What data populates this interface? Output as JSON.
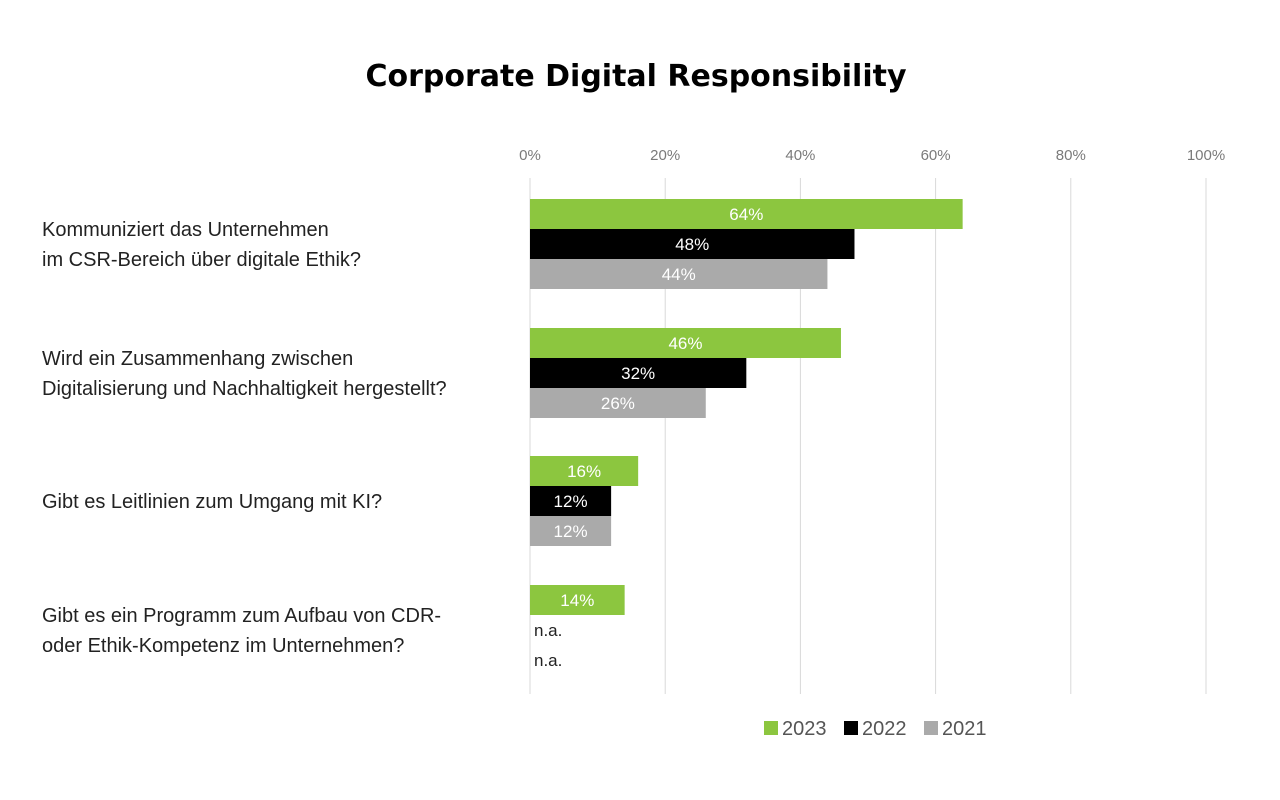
{
  "chart_data": {
    "type": "bar",
    "orientation": "horizontal",
    "title": "Corporate Digital Responsibility",
    "xlim": [
      0,
      100
    ],
    "x_ticks": [
      {
        "value": 0,
        "label": "0%"
      },
      {
        "value": 20,
        "label": "20%"
      },
      {
        "value": 40,
        "label": "40%"
      },
      {
        "value": 60,
        "label": "60%"
      },
      {
        "value": 80,
        "label": "80%"
      },
      {
        "value": 100,
        "label": "100%"
      }
    ],
    "grid": true,
    "legend_position": "bottom-right",
    "na_label": "n.a.",
    "categories": [
      [
        "Kommuniziert das Unternehmen",
        "im CSR-Bereich über digitale Ethik?"
      ],
      [
        "Wird ein Zusammenhang zwischen",
        "Digitalisierung und Nachhaltigkeit hergestellt?"
      ],
      [
        "Gibt es Leitlinien zum Umgang mit KI?"
      ],
      [
        "Gibt es ein Programm zum Aufbau von CDR-",
        "oder Ethik-Kompetenz im Unternehmen?"
      ]
    ],
    "series": [
      {
        "name": "2023",
        "color": "#8cc63f",
        "values": [
          64,
          46,
          16,
          14
        ],
        "labels": [
          "64%",
          "46%",
          "16%",
          "14%"
        ]
      },
      {
        "name": "2022",
        "color": "#000000",
        "values": [
          48,
          32,
          12,
          null
        ],
        "labels": [
          "48%",
          "32%",
          "12%",
          "n.a."
        ]
      },
      {
        "name": "2021",
        "color": "#aaaaaa",
        "values": [
          44,
          26,
          12,
          null
        ],
        "labels": [
          "44%",
          "26%",
          "12%",
          "n.a."
        ]
      }
    ]
  }
}
